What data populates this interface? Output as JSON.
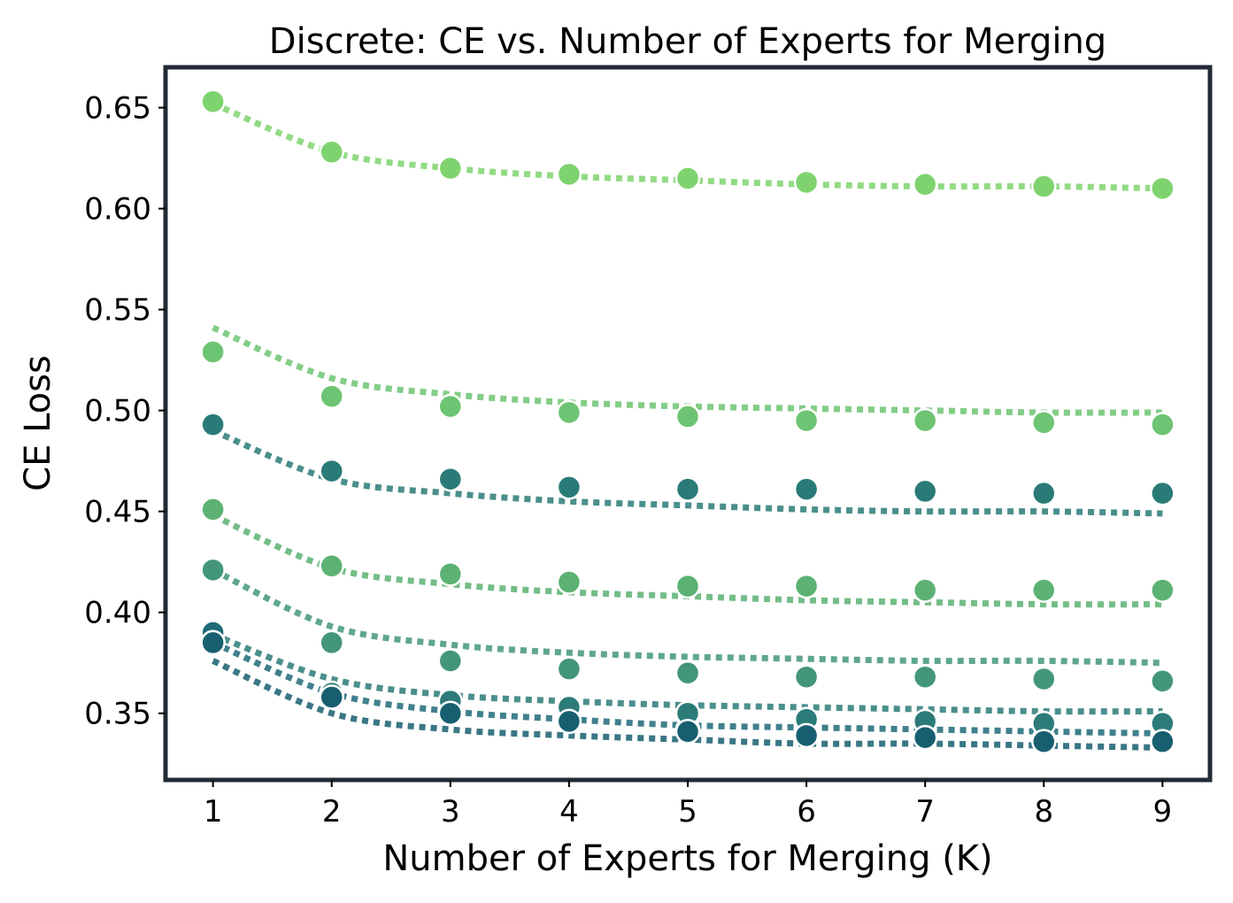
{
  "chart_data": {
    "type": "scatter",
    "title": "Discrete: CE vs. Number of Experts for Merging",
    "xlabel": "Number of Experts for Merging (K)",
    "ylabel": "CE Loss",
    "x": [
      1,
      2,
      3,
      4,
      5,
      6,
      7,
      8,
      9
    ],
    "xticks": [
      "1",
      "2",
      "3",
      "4",
      "5",
      "6",
      "7",
      "8",
      "9"
    ],
    "yticks": [
      "0.35",
      "0.40",
      "0.45",
      "0.50",
      "0.55",
      "0.60",
      "0.65"
    ],
    "ytick_values": [
      0.35,
      0.4,
      0.45,
      0.5,
      0.55,
      0.6,
      0.65
    ],
    "xlim": [
      0.6,
      9.4
    ],
    "ylim": [
      0.317,
      0.67
    ],
    "grid": false,
    "legend": "none",
    "series": [
      {
        "color": "#7fd36e",
        "values": [
          0.653,
          0.628,
          0.62,
          0.617,
          0.615,
          0.613,
          0.612,
          0.611,
          0.61
        ],
        "fit": [
          0.652,
          0.628,
          0.62,
          0.616,
          0.614,
          0.612,
          0.611,
          0.611,
          0.61
        ]
      },
      {
        "color": "#6dc472",
        "values": [
          0.529,
          0.507,
          0.502,
          0.499,
          0.497,
          0.495,
          0.495,
          0.494,
          0.493
        ],
        "fit": [
          0.541,
          0.516,
          0.508,
          0.504,
          0.502,
          0.501,
          0.5,
          0.499,
          0.499
        ]
      },
      {
        "color": "#2a7b77",
        "values": [
          0.493,
          0.47,
          0.466,
          0.462,
          0.461,
          0.461,
          0.46,
          0.459,
          0.459
        ],
        "fit": [
          0.49,
          0.466,
          0.459,
          0.455,
          0.453,
          0.451,
          0.45,
          0.45,
          0.449
        ]
      },
      {
        "color": "#5cb273",
        "values": [
          0.451,
          0.423,
          0.419,
          0.415,
          0.413,
          0.413,
          0.411,
          0.411,
          0.411
        ],
        "fit": [
          0.448,
          0.422,
          0.414,
          0.41,
          0.408,
          0.406,
          0.405,
          0.404,
          0.404
        ]
      },
      {
        "color": "#43967a",
        "values": [
          0.421,
          0.385,
          0.376,
          0.372,
          0.37,
          0.368,
          0.368,
          0.367,
          0.366
        ],
        "fit": [
          0.421,
          0.393,
          0.384,
          0.38,
          0.378,
          0.377,
          0.376,
          0.376,
          0.375
        ]
      },
      {
        "color": "#1e6a78",
        "values": [
          0.39,
          0.359,
          0.35,
          0.346,
          0.342,
          0.34,
          0.338,
          0.337,
          0.336
        ],
        "fit": [
          0.385,
          0.36,
          0.351,
          0.347,
          0.344,
          0.343,
          0.342,
          0.341,
          0.34
        ]
      },
      {
        "color": "#2c7b78",
        "values": [
          0.385,
          0.36,
          0.356,
          0.353,
          0.35,
          0.347,
          0.346,
          0.345,
          0.345
        ],
        "fit": [
          0.389,
          0.367,
          0.359,
          0.356,
          0.354,
          0.353,
          0.352,
          0.351,
          0.351
        ]
      },
      {
        "color": "#175f70",
        "values": [
          0.385,
          0.358,
          0.35,
          0.346,
          0.341,
          0.339,
          0.338,
          0.336,
          0.336
        ],
        "fit": [
          0.376,
          0.35,
          0.342,
          0.339,
          0.337,
          0.335,
          0.335,
          0.334,
          0.333
        ]
      }
    ]
  }
}
